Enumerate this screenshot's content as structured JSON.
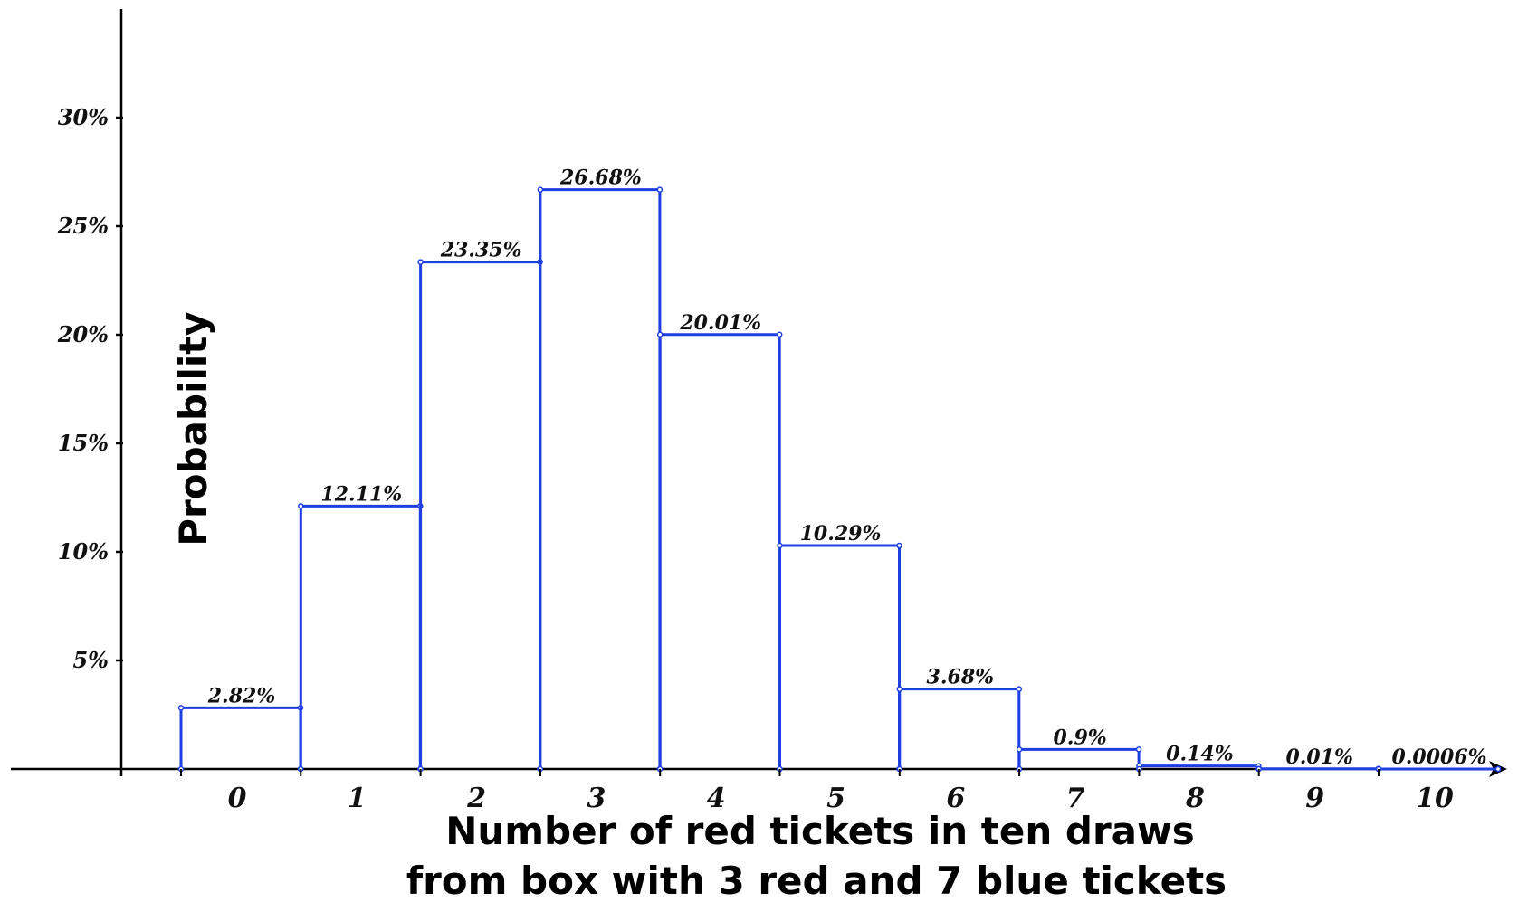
{
  "chart_data": {
    "type": "bar",
    "categories": [
      "0",
      "1",
      "2",
      "3",
      "4",
      "5",
      "6",
      "7",
      "8",
      "9",
      "10"
    ],
    "values": [
      2.82,
      12.11,
      23.35,
      26.68,
      20.01,
      10.29,
      3.68,
      0.9,
      0.14,
      0.01,
      0.0006
    ],
    "data_labels": [
      "2.82%",
      "12.11%",
      "23.35%",
      "26.68%",
      "20.01%",
      "10.29%",
      "3.68%",
      "0.9%",
      "0.14%",
      "0.01%",
      "0.0006%"
    ],
    "y_ticks": [
      5,
      10,
      15,
      20,
      25,
      30
    ],
    "y_tick_labels": [
      "5%",
      "10%",
      "15%",
      "20%",
      "25%",
      "30%"
    ],
    "ylim": [
      0,
      30
    ],
    "xlabel": [
      "Number of red tickets in ten draws",
      "from box with 3 red and 7 blue tickets"
    ],
    "ylabel": "Probability",
    "grid": false,
    "legend": "none",
    "bar_color": "#1f3fe0",
    "axis_color": "#000000"
  }
}
